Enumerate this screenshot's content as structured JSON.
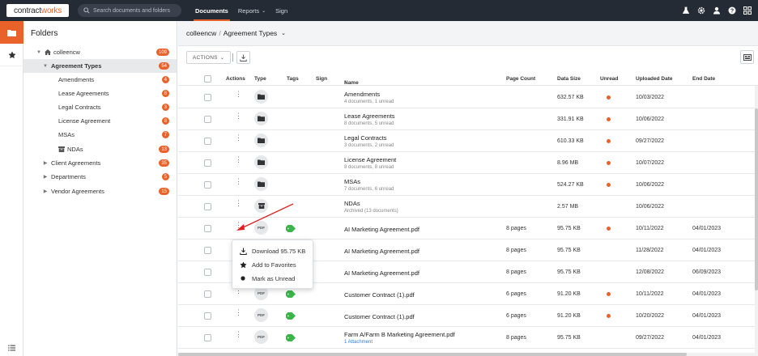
{
  "app": {
    "logo_a": "contract",
    "logo_b": "works",
    "search_placeholder": "Search documents and folders",
    "nav": [
      {
        "label": "Documents"
      },
      {
        "label": "Reports"
      },
      {
        "label": "Sign"
      }
    ],
    "accent": "#e8622a"
  },
  "tree": {
    "title": "Folders",
    "nodes": [
      {
        "label": "colleencw",
        "count": "109"
      },
      {
        "label": "Agreement Types",
        "count": "54"
      },
      {
        "label": "Amendments",
        "count": "4"
      },
      {
        "label": "Lease Agreements",
        "count": "8"
      },
      {
        "label": "Legal Contracts",
        "count": "3"
      },
      {
        "label": "License Agreement",
        "count": "8"
      },
      {
        "label": "MSAs",
        "count": "7"
      },
      {
        "label": "NDAs",
        "count": "13"
      },
      {
        "label": "Client Agreements",
        "count": "35"
      },
      {
        "label": "Departments",
        "count": "5"
      },
      {
        "label": "Vendor Agreements",
        "count": "15"
      }
    ]
  },
  "main": {
    "breadcrumb_root": "colleencw",
    "breadcrumb_sep": "/",
    "breadcrumb_current": "Agreement Types",
    "actions_label": "ACTIONS",
    "columns": {
      "actions": "Actions",
      "type": "Type",
      "tags": "Tags",
      "sign": "Sign",
      "name": "Name",
      "page_count": "Page Count",
      "data_size": "Data Size",
      "unread": "Unread",
      "uploaded": "Uploaded Date",
      "end": "End Date"
    },
    "rows": [
      {
        "name": "Amendments",
        "sub": "4 documents, 1 unread",
        "pages": "",
        "size": "632.57 KB",
        "uploaded": "10/03/2022",
        "end": ""
      },
      {
        "name": "Lease Agreements",
        "sub": "8 documents, 5 unread",
        "pages": "",
        "size": "331.91 KB",
        "uploaded": "10/06/2022",
        "end": ""
      },
      {
        "name": "Legal Contracts",
        "sub": "3 documents, 2 unread",
        "pages": "",
        "size": "610.33 KB",
        "uploaded": "09/27/2022",
        "end": ""
      },
      {
        "name": "License Agreement",
        "sub": "8 documents, 8 unread",
        "pages": "",
        "size": "8.96 MB",
        "uploaded": "10/07/2022",
        "end": ""
      },
      {
        "name": "MSAs",
        "sub": "7 documents, 6 unread",
        "pages": "",
        "size": "524.27 KB",
        "uploaded": "10/06/2022",
        "end": ""
      },
      {
        "name": "NDAs",
        "sub": "Archived (13 documents)",
        "pages": "",
        "size": "2.57 MB",
        "uploaded": "10/06/2022",
        "end": ""
      },
      {
        "name": "AI Marketing Agreement.pdf",
        "sub": "",
        "pages": "8 pages",
        "size": "95.75 KB",
        "uploaded": "10/11/2022",
        "end": "04/01/2023"
      },
      {
        "name": "AI Marketing Agreement.pdf",
        "sub": "",
        "pages": "8 pages",
        "size": "95.75 KB",
        "uploaded": "11/28/2022",
        "end": "04/01/2023"
      },
      {
        "name": "AI Marketing Agreement.pdf",
        "sub": "",
        "pages": "8 pages",
        "size": "95.75 KB",
        "uploaded": "12/08/2022",
        "end": "06/09/2023"
      },
      {
        "name": "Customer Contract (1).pdf",
        "sub": "",
        "pages": "6 pages",
        "size": "91.20 KB",
        "uploaded": "10/11/2022",
        "end": "04/01/2023"
      },
      {
        "name": "Customer Contract (1).pdf",
        "sub": "",
        "pages": "6 pages",
        "size": "91.20 KB",
        "uploaded": "10/20/2022",
        "end": "04/01/2023"
      },
      {
        "name": "Farm A/Farm B Marketing Agreement.pdf",
        "sub": "1 Attachment",
        "pages": "8 pages",
        "size": "95.75 KB",
        "uploaded": "09/27/2022",
        "end": "04/01/2023"
      }
    ],
    "pdf_label": "PDF"
  },
  "menu": {
    "download": "Download 95.75 KB",
    "favorites": "Add to Favorites",
    "unread": "Mark as Unread"
  }
}
